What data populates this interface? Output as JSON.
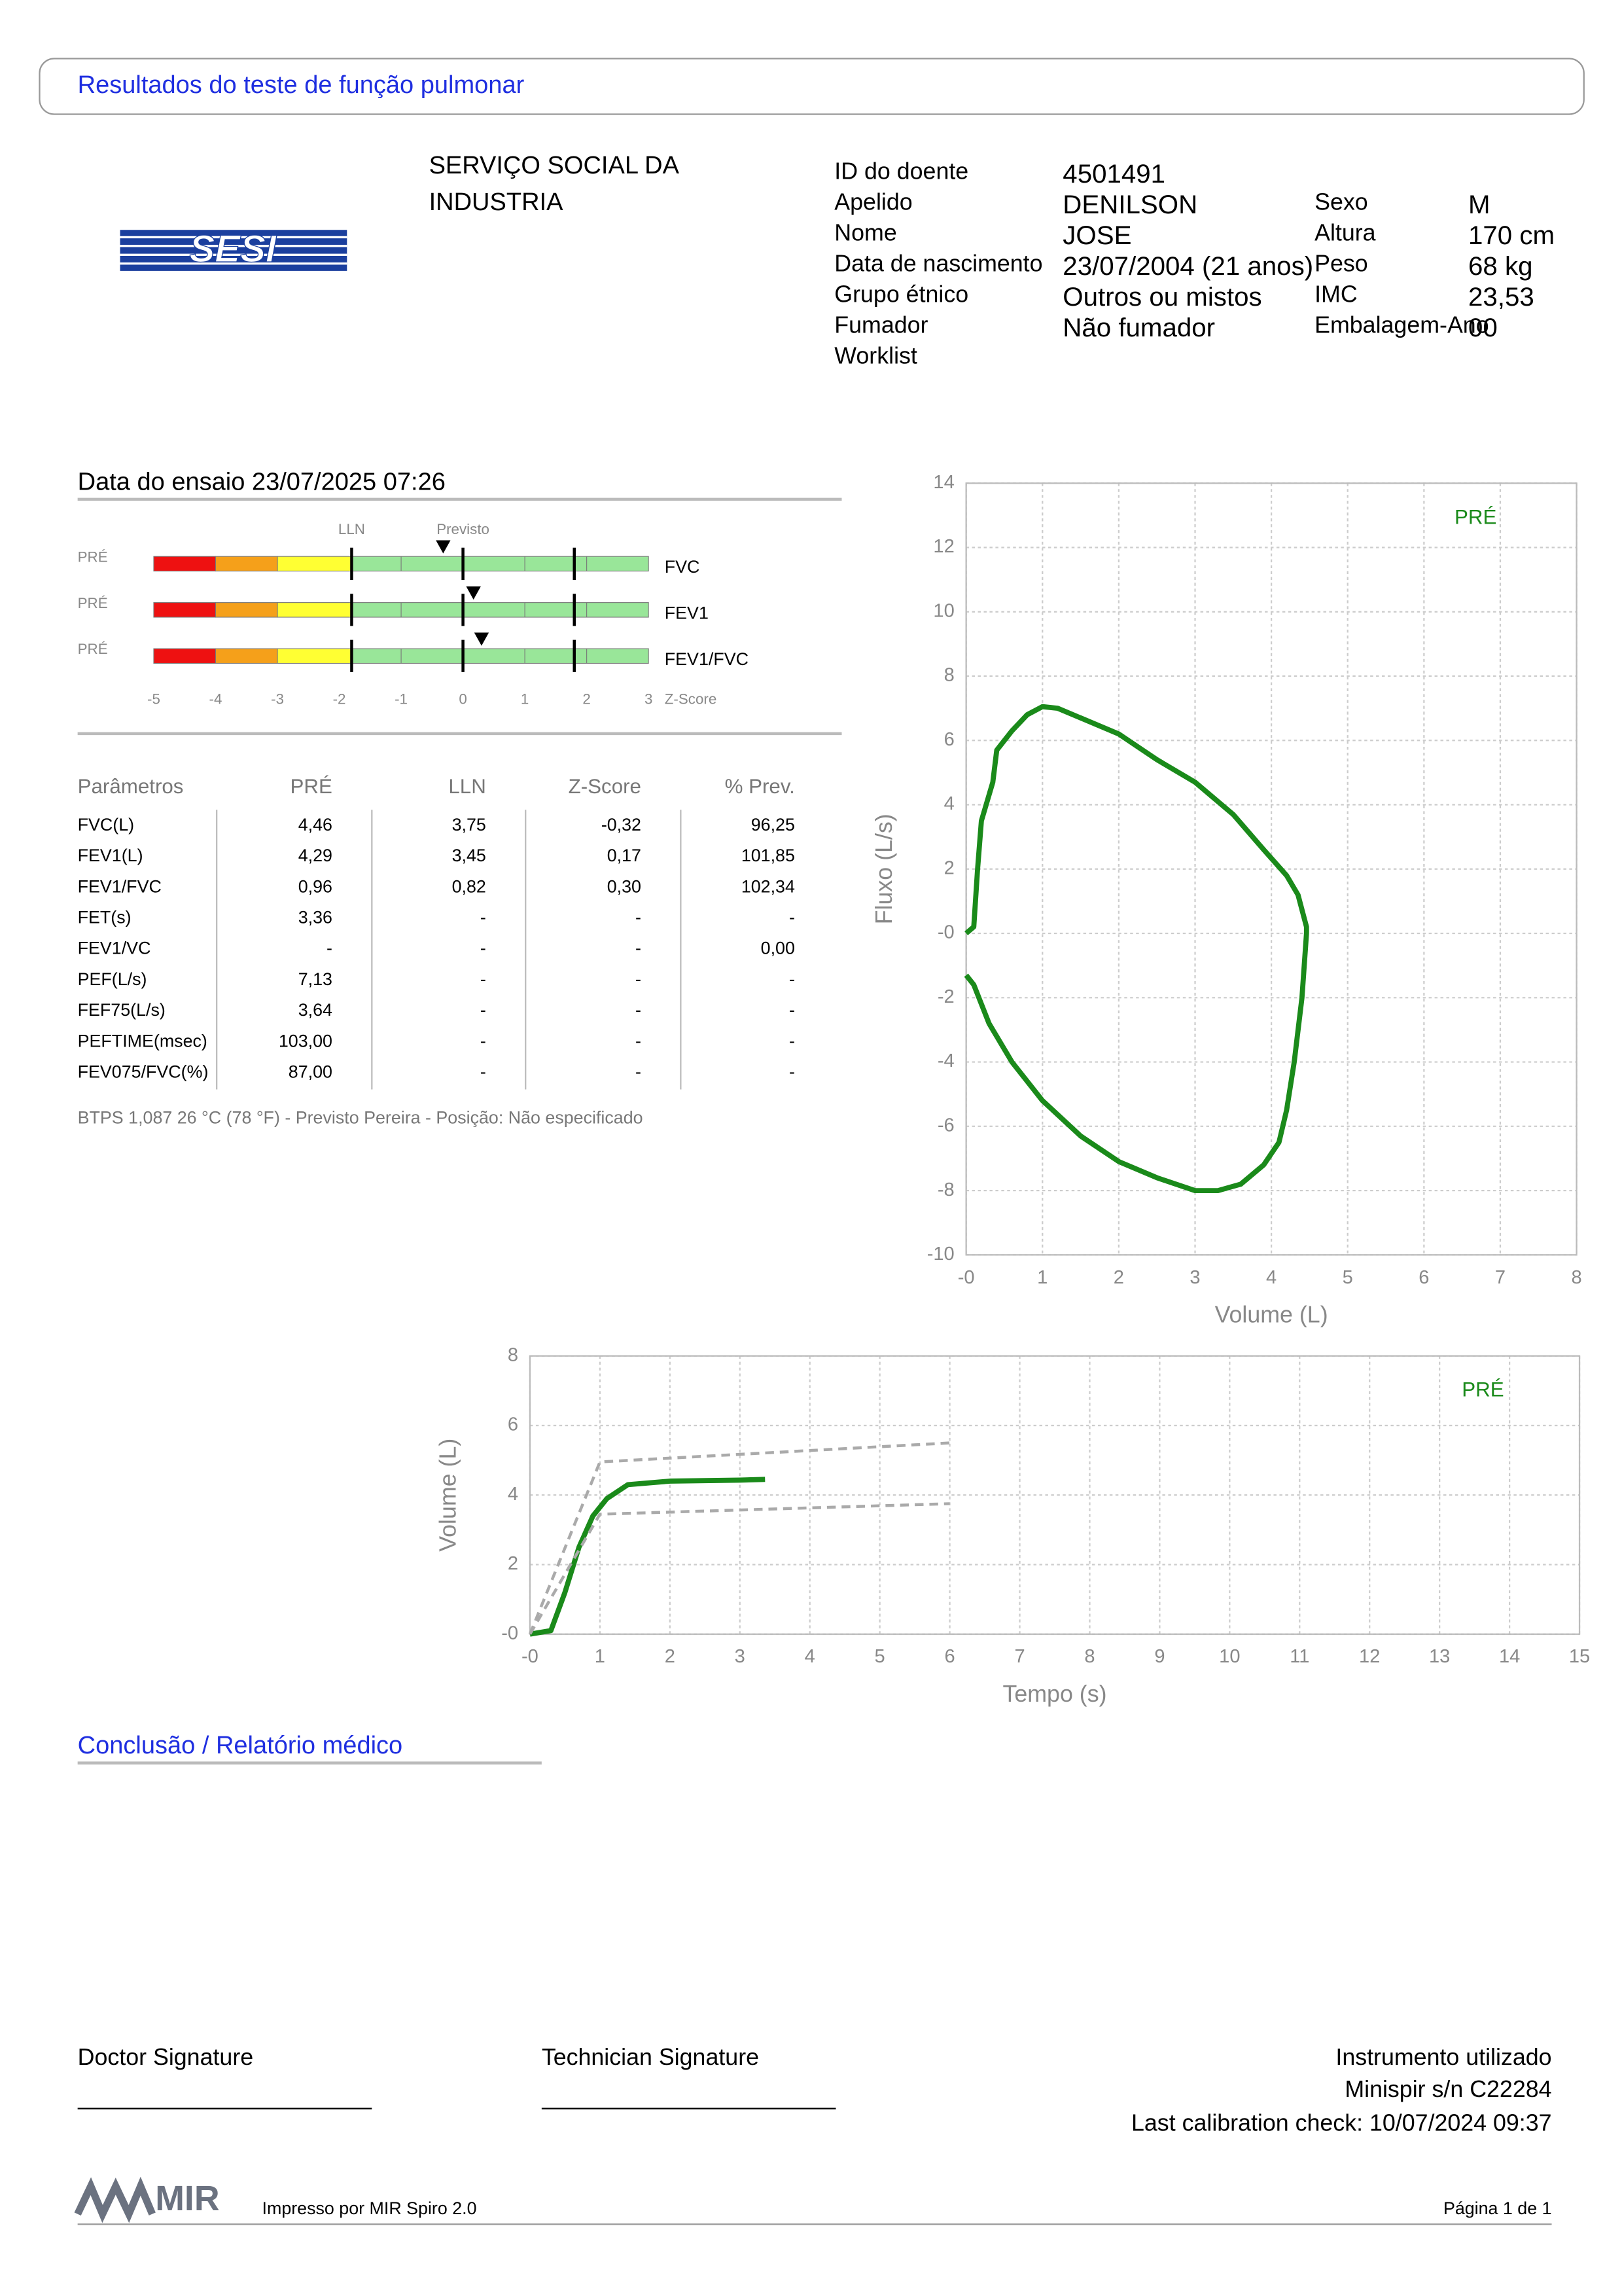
{
  "header": {
    "title": "Resultados do teste de função pulmonar"
  },
  "logo": {
    "text": "SESI"
  },
  "institution": {
    "lines": [
      "SERVIÇO SOCIAL DA",
      "INDUSTRIA"
    ]
  },
  "patient": {
    "left": [
      {
        "label": "ID do doente",
        "value": "4501491"
      },
      {
        "label": "Apelido",
        "value": "DENILSON"
      },
      {
        "label": "Nome",
        "value": "JOSE"
      },
      {
        "label": "Data de nascimento",
        "value": "23/07/2004 (21 anos)"
      },
      {
        "label": "Grupo étnico",
        "value": "Outros ou mistos"
      },
      {
        "label": "Fumador",
        "value": "Não fumador"
      },
      {
        "label": "Worklist"
      }
    ],
    "right": [
      {
        "label": "Sexo",
        "value": "M"
      },
      {
        "label": "Altura",
        "value": "170 cm"
      },
      {
        "label": "Peso",
        "value": "68 kg"
      },
      {
        "label": "IMC",
        "value": "23,53"
      },
      {
        "label": "Embalagem-Ano",
        "value": "00"
      }
    ]
  },
  "test_date": "Data do ensaio 23/07/2025 07:26",
  "zscore": {
    "lln_label": "LLN",
    "predicted_label": "Previsto",
    "axis_label": "Z-Score",
    "lln": -1.8,
    "predicted": 0,
    "uln": 1.8,
    "xlim": [
      -5,
      3
    ],
    "xticks": [
      -5,
      -4,
      -3,
      -2,
      -1,
      0,
      1,
      2,
      3
    ],
    "zones": [
      {
        "from": -5,
        "to": -4,
        "color": "#ee1111"
      },
      {
        "from": -4,
        "to": -3,
        "color": "#f5a01a"
      },
      {
        "from": -3,
        "to": -1.8,
        "color": "#ffff33"
      },
      {
        "from": -1.8,
        "to": 3,
        "color": "#99e699"
      }
    ],
    "rows": [
      {
        "tag": "PRÉ",
        "label": "FVC",
        "z": -0.32
      },
      {
        "tag": "PRÉ",
        "label": "FEV1",
        "z": 0.17
      },
      {
        "tag": "PRÉ",
        "label": "FEV1/FVC",
        "z": 0.3
      }
    ]
  },
  "table": {
    "headers": [
      "Parâmetros",
      "PRÉ",
      "LLN",
      "Z-Score",
      "% Prev."
    ],
    "rows": [
      [
        "FVC(L)",
        "4,46",
        "3,75",
        "-0,32",
        "96,25"
      ],
      [
        "FEV1(L)",
        "4,29",
        "3,45",
        "0,17",
        "101,85"
      ],
      [
        "FEV1/FVC",
        "0,96",
        "0,82",
        "0,30",
        "102,34"
      ],
      [
        "FET(s)",
        "3,36",
        "-",
        "-",
        "-"
      ],
      [
        "FEV1/VC",
        "-",
        "-",
        "-",
        "0,00"
      ],
      [
        "PEF(L/s)",
        "7,13",
        "-",
        "-",
        "-"
      ],
      [
        "FEF75(L/s)",
        "3,64",
        "-",
        "-",
        "-"
      ],
      [
        "PEFTIME(msec)",
        "103,00",
        "-",
        "-",
        "-"
      ],
      [
        "FEV075/FVC(%)",
        "87,00",
        "-",
        "-",
        "-"
      ]
    ]
  },
  "note": "BTPS 1,087 26 °C (78 °F) - Previsto Pereira - Posição: Não especificado",
  "flow_volume": {
    "type": "line",
    "xlabel": "Volume (L)",
    "ylabel": "Fluxo (L/s)",
    "xlim": [
      0,
      8
    ],
    "ylim": [
      -10,
      14
    ],
    "xticks": [
      {
        "value": 0,
        "label": "-0"
      },
      1,
      2,
      3,
      4,
      5,
      6,
      7,
      8
    ],
    "yticks": [
      -10,
      -8,
      -6,
      -4,
      -2,
      {
        "value": 0,
        "label": "-0"
      },
      2,
      4,
      6,
      8,
      10,
      12,
      14
    ],
    "grid": true,
    "series": [
      {
        "name": "PRÉ",
        "color": "#1a8a1a",
        "x": [
          0,
          0.1,
          0.15,
          0.2,
          0.35,
          0.4,
          0.6,
          0.8,
          1.0,
          1.2,
          1.5,
          2.0,
          2.5,
          3.0,
          3.5,
          3.9,
          4.2,
          4.35,
          4.46,
          4.46,
          4.4,
          4.3,
          4.2,
          4.1,
          3.9,
          3.6,
          3.3,
          3.0,
          2.5,
          2.0,
          1.5,
          1.0,
          0.6,
          0.3,
          0.1,
          0
        ],
        "y": [
          0,
          0.2,
          2,
          3.5,
          4.7,
          5.7,
          6.3,
          6.8,
          7.05,
          7.0,
          6.7,
          6.2,
          5.4,
          4.7,
          3.7,
          2.6,
          1.8,
          1.2,
          0.2,
          0,
          -2,
          -4,
          -5.5,
          -6.5,
          -7.2,
          -7.8,
          -8.0,
          -8.0,
          -7.6,
          -7.1,
          -6.3,
          -5.2,
          -4.0,
          -2.8,
          -1.6,
          -1.3
        ]
      }
    ]
  },
  "volume_time": {
    "type": "line",
    "xlabel": "Tempo (s)",
    "ylabel": "Volume (L)",
    "xlim": [
      0,
      15
    ],
    "ylim": [
      0,
      8
    ],
    "xticks": [
      {
        "value": 0,
        "label": "-0"
      },
      1,
      2,
      3,
      4,
      5,
      6,
      7,
      8,
      9,
      10,
      11,
      12,
      13,
      14,
      15
    ],
    "yticks": [
      {
        "value": 0,
        "label": "-0"
      },
      2,
      4,
      6,
      8
    ],
    "grid": true,
    "series": [
      {
        "name": "PRÉ",
        "color": "#1a8a1a",
        "x": [
          0,
          0.3,
          0.5,
          0.7,
          0.9,
          1.1,
          1.4,
          2,
          3,
          3.36
        ],
        "y": [
          0,
          0.1,
          1.2,
          2.5,
          3.4,
          3.9,
          4.3,
          4.4,
          4.43,
          4.45
        ]
      },
      {
        "color": "#aaaaaa",
        "dash": true,
        "x": [
          0,
          1,
          6
        ],
        "y": [
          0,
          4.95,
          5.5
        ]
      },
      {
        "color": "#aaaaaa",
        "dash": true,
        "x": [
          0,
          1,
          6
        ],
        "y": [
          0,
          3.45,
          3.75
        ]
      }
    ]
  },
  "conclusion": {
    "title": "Conclusão / Relatório médico"
  },
  "signatures": {
    "doctor": "Doctor Signature",
    "technician": "Technician Signature"
  },
  "instrument": {
    "title": "Instrumento utilizado",
    "device": "Minispir s/n C22284",
    "calibration": "Last calibration check: 10/07/2024 09:37"
  },
  "footer": {
    "logo": "MIR",
    "printed": "Impresso por MIR Spiro 2.0",
    "page": "Página 1 de 1"
  }
}
